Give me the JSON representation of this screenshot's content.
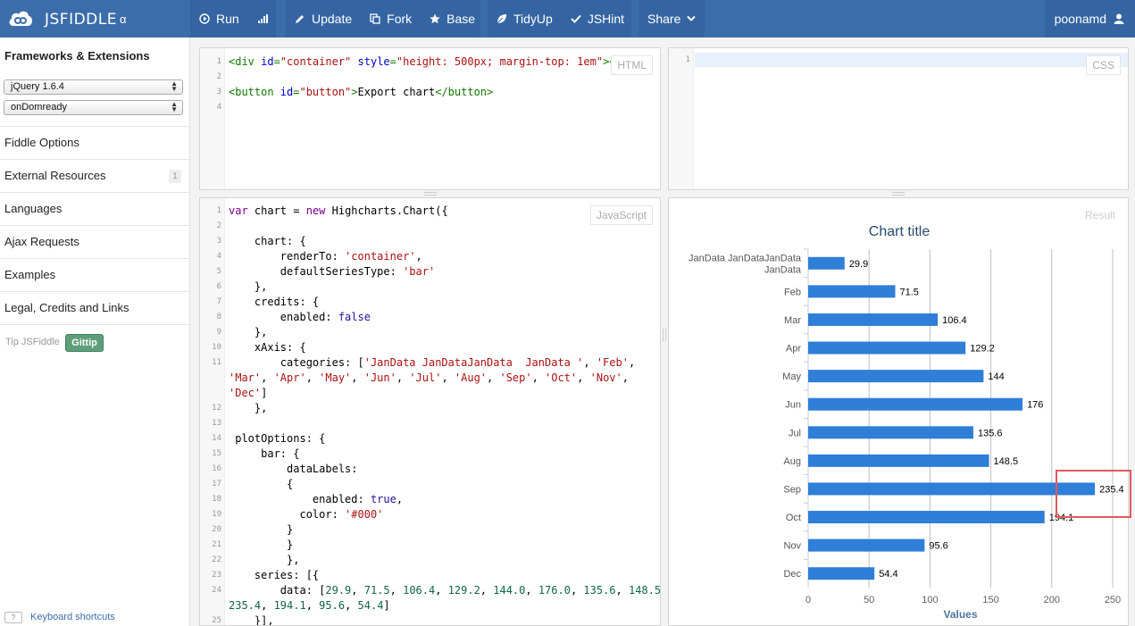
{
  "app": {
    "logo_text": "JSFIDDLE",
    "logo_badge": "α",
    "toolbar": {
      "run": "Run",
      "update": "Update",
      "fork": "Fork",
      "base": "Base",
      "tidyup": "TidyUp",
      "jshint": "JSHint",
      "share": "Share",
      "user": "poonamd"
    }
  },
  "sidebar": {
    "title": "Frameworks & Extensions",
    "framework_select": "jQuery 1.6.4",
    "load_select": "onDomready",
    "items": [
      {
        "label": "Fiddle Options"
      },
      {
        "label": "External Resources",
        "badge": "1"
      },
      {
        "label": "Languages"
      },
      {
        "label": "Ajax Requests"
      },
      {
        "label": "Examples"
      },
      {
        "label": "Legal, Credits and Links"
      }
    ],
    "tip_label": "Tip JSFiddle",
    "gittip_label": "Gittip",
    "kbd_icon": "?",
    "keyboard_shortcuts": "Keyboard shortcuts"
  },
  "panels": {
    "html_label": "HTML",
    "css_label": "CSS",
    "js_label": "JavaScript",
    "result_label": "Result"
  },
  "html_code": [
    {
      "n": "1",
      "tokens": [
        [
          "tag",
          "<div "
        ],
        [
          "attr",
          "id"
        ],
        [
          "tag",
          "="
        ],
        [
          "str",
          "\"container\""
        ],
        [
          "tag",
          " "
        ],
        [
          "attr",
          "style"
        ],
        [
          "tag",
          "="
        ],
        [
          "str",
          "\"height: 500px; margin-top: 1em\""
        ],
        [
          "tag",
          "></div>"
        ]
      ]
    },
    {
      "n": "2",
      "tokens": []
    },
    {
      "n": "3",
      "tokens": [
        [
          "tag",
          "<button "
        ],
        [
          "attr",
          "id"
        ],
        [
          "tag",
          "="
        ],
        [
          "str",
          "\"button\""
        ],
        [
          "tag",
          ">"
        ],
        [
          "txt",
          "Export chart"
        ],
        [
          "tag",
          "</button>"
        ]
      ]
    },
    {
      "n": "4",
      "tokens": []
    }
  ],
  "css_code": [
    {
      "n": "1",
      "tokens": []
    }
  ],
  "js_code": [
    {
      "n": "1",
      "tokens": [
        [
          "kw",
          "var"
        ],
        [
          "txt",
          " chart = "
        ],
        [
          "kw",
          "new"
        ],
        [
          "txt",
          " Highcharts.Chart({"
        ]
      ]
    },
    {
      "n": "2",
      "tokens": []
    },
    {
      "n": "3",
      "tokens": [
        [
          "txt",
          "    chart: {"
        ]
      ]
    },
    {
      "n": "4",
      "tokens": [
        [
          "txt",
          "        renderTo: "
        ],
        [
          "str",
          "'container'"
        ],
        [
          "txt",
          ","
        ]
      ]
    },
    {
      "n": "5",
      "tokens": [
        [
          "txt",
          "        defaultSeriesType: "
        ],
        [
          "str",
          "'bar'"
        ]
      ]
    },
    {
      "n": "6",
      "tokens": [
        [
          "txt",
          "    },"
        ]
      ]
    },
    {
      "n": "7",
      "tokens": [
        [
          "txt",
          "    credits: {"
        ]
      ]
    },
    {
      "n": "8",
      "tokens": [
        [
          "txt",
          "        enabled: "
        ],
        [
          "atom",
          "false"
        ]
      ]
    },
    {
      "n": "9",
      "tokens": [
        [
          "txt",
          "    },"
        ]
      ]
    },
    {
      "n": "10",
      "tokens": [
        [
          "txt",
          "    xAxis: {"
        ]
      ]
    },
    {
      "n": "11",
      "tokens": [
        [
          "txt",
          "        categories: ["
        ],
        [
          "str",
          "'JanData JanDataJanData  JanData '"
        ],
        [
          "txt",
          ", "
        ],
        [
          "str",
          "'Feb'"
        ],
        [
          "txt",
          ","
        ]
      ]
    },
    {
      "n": "",
      "tokens": [
        [
          "str",
          "'Mar'"
        ],
        [
          "txt",
          ", "
        ],
        [
          "str",
          "'Apr'"
        ],
        [
          "txt",
          ", "
        ],
        [
          "str",
          "'May'"
        ],
        [
          "txt",
          ", "
        ],
        [
          "str",
          "'Jun'"
        ],
        [
          "txt",
          ", "
        ],
        [
          "str",
          "'Jul'"
        ],
        [
          "txt",
          ", "
        ],
        [
          "str",
          "'Aug'"
        ],
        [
          "txt",
          ", "
        ],
        [
          "str",
          "'Sep'"
        ],
        [
          "txt",
          ", "
        ],
        [
          "str",
          "'Oct'"
        ],
        [
          "txt",
          ", "
        ],
        [
          "str",
          "'Nov'"
        ],
        [
          "txt",
          ","
        ]
      ],
      "wrap": true
    },
    {
      "n": "",
      "tokens": [
        [
          "str",
          "'Dec'"
        ],
        [
          "txt",
          "]"
        ]
      ],
      "wrap": true
    },
    {
      "n": "12",
      "tokens": [
        [
          "txt",
          "    },"
        ]
      ]
    },
    {
      "n": "13",
      "tokens": []
    },
    {
      "n": "14",
      "tokens": [
        [
          "txt",
          " plotOptions: {"
        ]
      ]
    },
    {
      "n": "15",
      "tokens": [
        [
          "txt",
          "     bar: {"
        ]
      ]
    },
    {
      "n": "16",
      "tokens": [
        [
          "txt",
          "         dataLabels:"
        ]
      ]
    },
    {
      "n": "17",
      "tokens": [
        [
          "txt",
          "         {"
        ]
      ]
    },
    {
      "n": "18",
      "tokens": [
        [
          "txt",
          "             enabled: "
        ],
        [
          "atom",
          "true"
        ],
        [
          "txt",
          ","
        ]
      ]
    },
    {
      "n": "19",
      "tokens": [
        [
          "txt",
          "           color: "
        ],
        [
          "str",
          "'#000'"
        ]
      ]
    },
    {
      "n": "20",
      "tokens": [
        [
          "txt",
          "         }"
        ]
      ]
    },
    {
      "n": "21",
      "tokens": [
        [
          "txt",
          "         }"
        ]
      ]
    },
    {
      "n": "22",
      "tokens": [
        [
          "txt",
          "         },"
        ]
      ]
    },
    {
      "n": "23",
      "tokens": [
        [
          "txt",
          "    series: [{"
        ]
      ]
    },
    {
      "n": "24",
      "tokens": [
        [
          "txt",
          "        data: ["
        ],
        [
          "num",
          "29.9"
        ],
        [
          "txt",
          ", "
        ],
        [
          "num",
          "71.5"
        ],
        [
          "txt",
          ", "
        ],
        [
          "num",
          "106.4"
        ],
        [
          "txt",
          ", "
        ],
        [
          "num",
          "129.2"
        ],
        [
          "txt",
          ", "
        ],
        [
          "num",
          "144.0"
        ],
        [
          "txt",
          ", "
        ],
        [
          "num",
          "176.0"
        ],
        [
          "txt",
          ", "
        ],
        [
          "num",
          "135.6"
        ],
        [
          "txt",
          ", "
        ],
        [
          "num",
          "148.5"
        ],
        [
          "txt",
          ","
        ]
      ]
    },
    {
      "n": "",
      "tokens": [
        [
          "num",
          "235.4"
        ],
        [
          "txt",
          ", "
        ],
        [
          "num",
          "194.1"
        ],
        [
          "txt",
          ", "
        ],
        [
          "num",
          "95.6"
        ],
        [
          "txt",
          ", "
        ],
        [
          "num",
          "54.4"
        ],
        [
          "txt",
          "]"
        ]
      ],
      "wrap": true
    },
    {
      "n": "25",
      "tokens": [
        [
          "txt",
          "    }],"
        ]
      ]
    }
  ],
  "chart_data": {
    "type": "bar",
    "title": "Chart title",
    "xlabel": "",
    "ylabel": "Values",
    "categories": [
      "JanData JanDataJanData  JanData ",
      "Feb",
      "Mar",
      "Apr",
      "May",
      "Jun",
      "Jul",
      "Aug",
      "Sep",
      "Oct",
      "Nov",
      "Dec"
    ],
    "category_label_lines": [
      [
        "JanData JanDataJanData",
        "JanData"
      ],
      [
        "Feb"
      ],
      [
        "Mar"
      ],
      [
        "Apr"
      ],
      [
        "May"
      ],
      [
        "Jun"
      ],
      [
        "Jul"
      ],
      [
        "Aug"
      ],
      [
        "Sep"
      ],
      [
        "Oct"
      ],
      [
        "Nov"
      ],
      [
        "Dec"
      ]
    ],
    "values": [
      29.9,
      71.5,
      106.4,
      129.2,
      144.0,
      176.0,
      135.6,
      148.5,
      235.4,
      194.1,
      95.6,
      54.4
    ],
    "data_labels": [
      "29.9",
      "71.5",
      "106.4",
      "129.2",
      "144",
      "176",
      "135.6",
      "148.5",
      "235.4",
      "194.1",
      "95.6",
      "54.4"
    ],
    "ylim": [
      0,
      250
    ],
    "yticks": [
      0,
      50,
      100,
      150,
      200,
      250
    ],
    "grid": true,
    "bar_color": "#2f7ed8"
  }
}
